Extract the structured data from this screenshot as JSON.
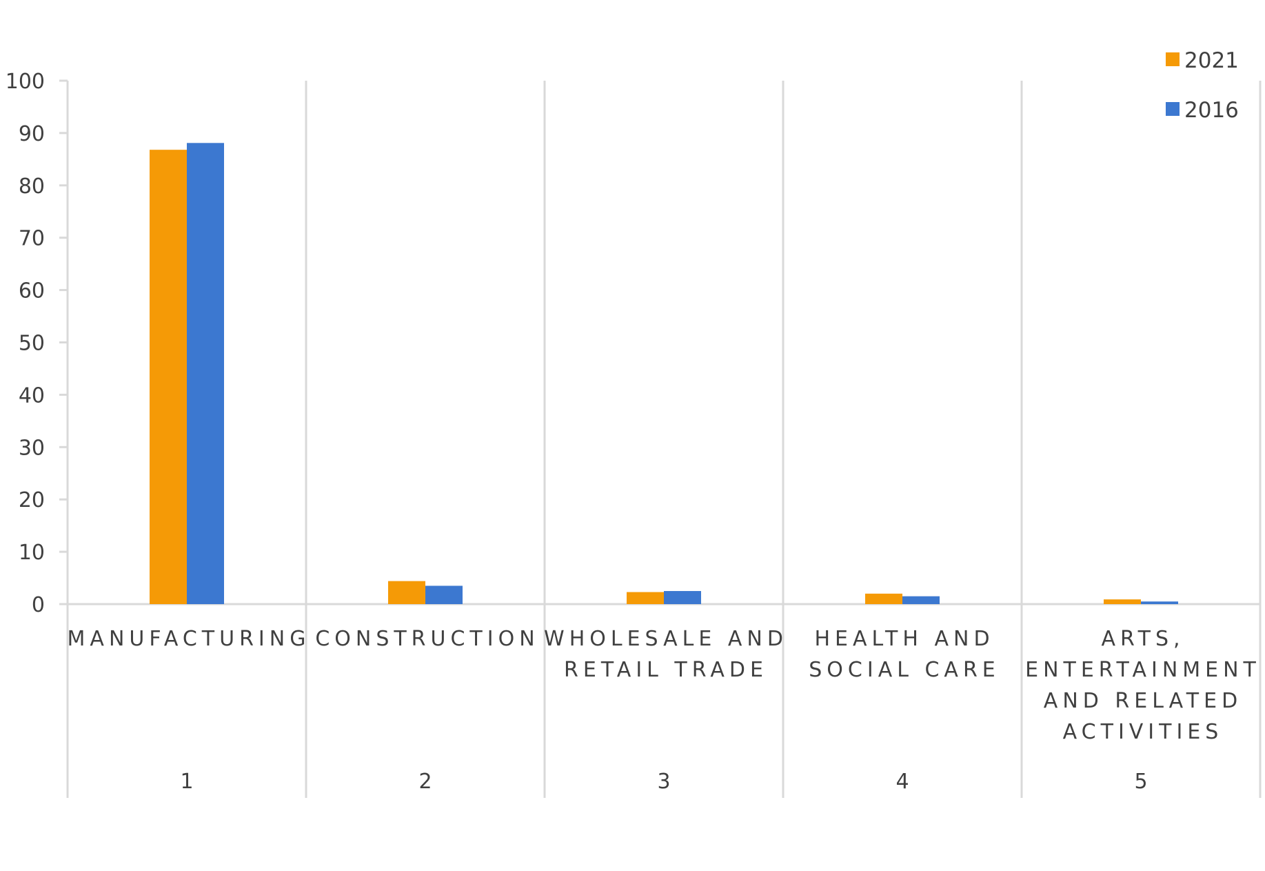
{
  "chart_data": {
    "type": "bar",
    "title": "",
    "xlabel": "",
    "ylabel": "",
    "ylim": [
      0,
      100
    ],
    "yticks": [
      0,
      10,
      20,
      30,
      40,
      50,
      60,
      70,
      80,
      90,
      100
    ],
    "categories": [
      {
        "lines": [
          "MANUFACTURING"
        ],
        "number": "1"
      },
      {
        "lines": [
          "CONSTRUCTION"
        ],
        "number": "2"
      },
      {
        "lines": [
          "WHOLESALE AND",
          "RETAIL TRADE"
        ],
        "number": "3"
      },
      {
        "lines": [
          "HEALTH AND",
          "SOCIAL CARE"
        ],
        "number": "4"
      },
      {
        "lines": [
          "ARTS,",
          "ENTERTAINMENT",
          "AND RELATED",
          "ACTIVITIES"
        ],
        "number": "5"
      }
    ],
    "series": [
      {
        "name": "2021",
        "color": "#F59A06",
        "values": [
          86.8,
          4.4,
          2.3,
          2.0,
          0.9
        ]
      },
      {
        "name": "2016",
        "color": "#3C78D0",
        "values": [
          88.1,
          3.5,
          2.5,
          1.5,
          0.5
        ]
      }
    ],
    "grid": true,
    "legend_position": "top-right"
  }
}
